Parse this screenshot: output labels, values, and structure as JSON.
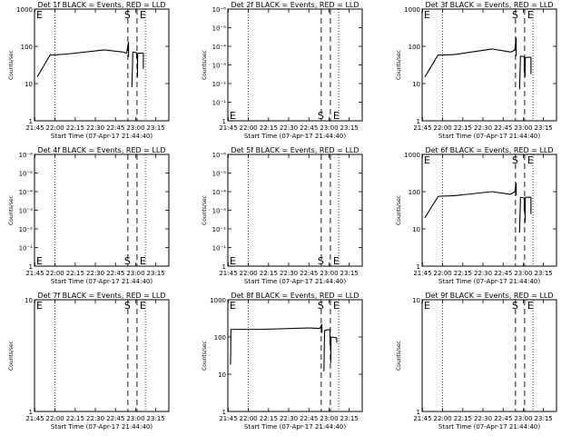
{
  "chart_data": [
    {
      "type": "line",
      "title": "Det 1f BLACK = Events, RED = LLD",
      "ylabel": "Counts/sec",
      "xlabel": "Start Time (07-Apr-17 21:44:40)",
      "y_scale": "log",
      "ylim": [
        1,
        1000
      ],
      "yticks": [
        "1",
        "10",
        "100",
        "1000"
      ],
      "xticks": [
        "21:45",
        "22:00",
        "22:15",
        "22:30",
        "22:45",
        "23:00",
        "23:15"
      ],
      "markers": [
        {
          "label": "E",
          "position": "top"
        },
        {
          "label": "S",
          "position": "top"
        },
        {
          "label": "E",
          "position": "top"
        }
      ],
      "series": [
        {
          "points": [
            [
              22.0,
              58
            ],
            [
              23.0,
              60
            ],
            [
              24.0,
              62
            ],
            [
              25.0,
              64
            ],
            [
              26.0,
              66
            ],
            [
              27.0,
              69
            ],
            [
              28.0,
              72
            ],
            [
              28.5,
              75
            ],
            [
              29.0,
              78
            ],
            [
              29.5,
              80
            ],
            [
              30.0,
              80
            ],
            [
              30.5,
              79
            ],
            [
              31.0,
              76
            ],
            [
              31.5,
              72
            ],
            [
              32.0,
              68
            ],
            [
              32.5,
              67
            ]
          ],
          "segments": [
            {
              "x": [
                2,
                12
              ],
              "y": [
                15,
                62
              ]
            },
            {
              "x": [
                12,
                24
              ],
              "y": [
                58,
                62
              ]
            },
            {
              "x": [
                24,
                52
              ],
              "y": [
                62,
                80
              ]
            },
            {
              "x": [
                52,
                66
              ],
              "y": [
                80,
                70
              ]
            },
            {
              "x": [
                66,
                68.6
              ],
              "y": [
                70,
                65
              ]
            },
            {
              "x": [
                68.6,
                70
              ],
              "y": [
                65,
                130
              ]
            },
            {
              "x": [
                70,
                70
              ],
              "y": [
                130,
                52
              ]
            },
            {
              "x": [
                72.5,
                73.2
              ],
              "y": [
                8,
                70
              ]
            },
            {
              "x": [
                73.2,
                76
              ],
              "y": [
                70,
                68
              ]
            },
            {
              "x": [
                76,
                76
              ],
              "y": [
                68,
                48
              ]
            },
            {
              "x": [
                76.6,
                76.8
              ],
              "y": [
                15,
                65
              ]
            },
            {
              "x": [
                76.8,
                81
              ],
              "y": [
                65,
                66
              ]
            },
            {
              "x": [
                81,
                81
              ],
              "y": [
                66,
                25
              ]
            }
          ]
        }
      ]
    },
    {
      "type": "line",
      "title": "Det 2f BLACK = Events, RED = LLD",
      "ylabel": "Counts/sec",
      "xlabel": "Start Time (07-Apr-17 21:44:40)",
      "y_scale": "log",
      "ylim": [
        1,
        1e-06
      ],
      "yticks": [
        "1",
        "10⁻¹",
        "10⁻²",
        "10⁻³",
        "10⁻⁴",
        "10⁻⁵",
        "10⁻⁶"
      ],
      "xticks": [
        "21:45",
        "22:00",
        "22:15",
        "22:30",
        "22:45",
        "23:00",
        "23:15"
      ],
      "markers": [
        {
          "label": "E",
          "position": "bottom"
        },
        {
          "label": "S",
          "position": "bottom"
        },
        {
          "label": "E",
          "position": "bottom"
        }
      ],
      "series": []
    },
    {
      "type": "line",
      "title": "Det 3f BLACK = Events, RED = LLD",
      "ylabel": "Counts/sec",
      "xlabel": "Start Time (07-Apr-17 21:44:40)",
      "y_scale": "log",
      "ylim": [
        1,
        1000
      ],
      "yticks": [
        "1",
        "10",
        "100",
        "1000"
      ],
      "xticks": [
        "21:45",
        "22:00",
        "22:15",
        "22:30",
        "22:45",
        "23:00",
        "23:15"
      ],
      "markers": [
        {
          "label": "E",
          "position": "top"
        },
        {
          "label": "S",
          "position": "top"
        },
        {
          "label": "E",
          "position": "top"
        }
      ],
      "series": [
        {
          "segments": [
            {
              "x": [
                2,
                12
              ],
              "y": [
                15,
                60
              ]
            },
            {
              "x": [
                12,
                24
              ],
              "y": [
                58,
                60
              ]
            },
            {
              "x": [
                24,
                52
              ],
              "y": [
                60,
                85
              ]
            },
            {
              "x": [
                52,
                66
              ],
              "y": [
                85,
                70
              ]
            },
            {
              "x": [
                66,
                69
              ],
              "y": [
                70,
                80
              ]
            },
            {
              "x": [
                69,
                70
              ],
              "y": [
                80,
                170
              ]
            },
            {
              "x": [
                70,
                70
              ],
              "y": [
                170,
                55
              ]
            },
            {
              "x": [
                72.5,
                73.2
              ],
              "y": [
                7,
                55
              ]
            },
            {
              "x": [
                73.2,
                76
              ],
              "y": [
                55,
                52
              ]
            },
            {
              "x": [
                76,
                76
              ],
              "y": [
                52,
                20
              ]
            },
            {
              "x": [
                76.6,
                76.8
              ],
              "y": [
                15,
                50
              ]
            },
            {
              "x": [
                76.8,
                81
              ],
              "y": [
                50,
                51
              ]
            },
            {
              "x": [
                81,
                81
              ],
              "y": [
                51,
                18
              ]
            }
          ]
        }
      ]
    },
    {
      "type": "line",
      "title": "Det 4f BLACK = Events, RED = LLD",
      "ylabel": "Counts/sec",
      "xlabel": "Start Time (07-Apr-17 21:44:40)",
      "y_scale": "log",
      "ylim": [
        1,
        1e-06
      ],
      "yticks": [
        "1",
        "10⁻¹",
        "10⁻²",
        "10⁻³",
        "10⁻⁴",
        "10⁻⁵",
        "10⁻⁶"
      ],
      "xticks": [
        "21:45",
        "22:00",
        "22:15",
        "22:30",
        "22:45",
        "23:00",
        "23:15"
      ],
      "markers": [
        {
          "label": "E",
          "position": "bottom"
        },
        {
          "label": "S",
          "position": "bottom"
        },
        {
          "label": "E",
          "position": "bottom"
        }
      ],
      "series": []
    },
    {
      "type": "line",
      "title": "Det 5f BLACK = Events, RED = LLD",
      "ylabel": "Counts/sec",
      "xlabel": "Start Time (07-Apr-17 21:44:40)",
      "y_scale": "log",
      "ylim": [
        1,
        1e-06
      ],
      "yticks": [
        "1",
        "10⁻¹",
        "10⁻²",
        "10⁻³",
        "10⁻⁴",
        "10⁻⁵",
        "10⁻⁶"
      ],
      "xticks": [
        "21:45",
        "22:00",
        "22:15",
        "22:30",
        "22:45",
        "23:00",
        "23:15"
      ],
      "markers": [
        {
          "label": "E",
          "position": "bottom"
        },
        {
          "label": "S",
          "position": "bottom"
        },
        {
          "label": "E",
          "position": "bottom"
        }
      ],
      "series": []
    },
    {
      "type": "line",
      "title": "Det 6f BLACK = Events, RED = LLD",
      "ylabel": "Counts/sec",
      "xlabel": "Start Time (07-Apr-17 21:44:40)",
      "y_scale": "log",
      "ylim": [
        1,
        1000
      ],
      "yticks": [
        "1",
        "10",
        "100",
        "1000"
      ],
      "xticks": [
        "21:45",
        "22:00",
        "22:15",
        "22:30",
        "22:45",
        "23:00",
        "23:15"
      ],
      "markers": [
        {
          "label": "E",
          "position": "top"
        },
        {
          "label": "S",
          "position": "top"
        },
        {
          "label": "E",
          "position": "top"
        }
      ],
      "series": [
        {
          "segments": [
            {
              "x": [
                2,
                12
              ],
              "y": [
                20,
                75
              ]
            },
            {
              "x": [
                12,
                24
              ],
              "y": [
                75,
                78
              ]
            },
            {
              "x": [
                24,
                52
              ],
              "y": [
                78,
                100
              ]
            },
            {
              "x": [
                52,
                66
              ],
              "y": [
                100,
                85
              ]
            },
            {
              "x": [
                66,
                69
              ],
              "y": [
                85,
                100
              ]
            },
            {
              "x": [
                69,
                70
              ],
              "y": [
                100,
                170
              ]
            },
            {
              "x": [
                70,
                70
              ],
              "y": [
                170,
                80
              ]
            },
            {
              "x": [
                72.5,
                73.2
              ],
              "y": [
                8,
                70
              ]
            },
            {
              "x": [
                73.2,
                76
              ],
              "y": [
                70,
                68
              ]
            },
            {
              "x": [
                76,
                76
              ],
              "y": [
                68,
                30
              ]
            },
            {
              "x": [
                76.6,
                76.8
              ],
              "y": [
                15,
                70
              ]
            },
            {
              "x": [
                76.8,
                81
              ],
              "y": [
                70,
                71
              ]
            },
            {
              "x": [
                81,
                81
              ],
              "y": [
                71,
                25
              ]
            }
          ]
        }
      ]
    },
    {
      "type": "line",
      "title": "Det 7f BLACK = Events, RED = LLD",
      "ylabel": "Counts/sec",
      "xlabel": "Start Time (07-Apr-17 21:44:40)",
      "y_scale": "log",
      "ylim": [
        1,
        10
      ],
      "yticks": [
        "1",
        "10"
      ],
      "xticks": [
        "21:45",
        "22:00",
        "22:15",
        "22:30",
        "22:45",
        "23:00",
        "23:15"
      ],
      "markers": [
        {
          "label": "E",
          "position": "top"
        },
        {
          "label": "S",
          "position": "top"
        },
        {
          "label": "E",
          "position": "top"
        }
      ],
      "series": []
    },
    {
      "type": "line",
      "title": "Det 8f BLACK = Events, RED = LLD",
      "ylabel": "Counts/sec",
      "xlabel": "Start Time (07-Apr-17 21:44:40)",
      "y_scale": "log",
      "ylim": [
        1,
        1000
      ],
      "yticks": [
        "1",
        "10",
        "100",
        "1000"
      ],
      "xticks": [
        "21:45",
        "22:00",
        "22:15",
        "22:30",
        "22:45",
        "23:00",
        "23:15"
      ],
      "markers": [
        {
          "label": "E",
          "position": "top"
        },
        {
          "label": "S",
          "position": "top"
        },
        {
          "label": "E",
          "position": "top"
        }
      ],
      "series": [
        {
          "segments": [
            {
              "x": [
                2,
                2.3
              ],
              "y": [
                18,
                160
              ]
            },
            {
              "x": [
                2.3,
                24
              ],
              "y": [
                160,
                160
              ]
            },
            {
              "x": [
                24,
                60
              ],
              "y": [
                160,
                175
              ]
            },
            {
              "x": [
                60,
                68.5
              ],
              "y": [
                175,
                170
              ]
            },
            {
              "x": [
                68.5,
                70
              ],
              "y": [
                170,
                220
              ]
            },
            {
              "x": [
                70,
                70
              ],
              "y": [
                220,
                130
              ]
            },
            {
              "x": [
                71.5,
                72
              ],
              "y": [
                12,
                150
              ]
            },
            {
              "x": [
                72,
                76
              ],
              "y": [
                150,
                160
              ]
            },
            {
              "x": [
                76,
                76
              ],
              "y": [
                160,
                60
              ]
            },
            {
              "x": [
                76.6,
                76.8
              ],
              "y": [
                20,
                100
              ]
            },
            {
              "x": [
                76.8,
                81
              ],
              "y": [
                100,
                95
              ]
            },
            {
              "x": [
                81,
                81
              ],
              "y": [
                95,
                70
              ]
            }
          ]
        }
      ]
    },
    {
      "type": "line",
      "title": "Det 9f BLACK = Events, RED = LLD",
      "ylabel": "Counts/sec",
      "xlabel": "Start Time (07-Apr-17 21:44:40)",
      "y_scale": "log",
      "ylim": [
        1,
        10
      ],
      "yticks": [
        "1",
        "10"
      ],
      "xticks": [
        "21:45",
        "22:00",
        "22:15",
        "22:30",
        "22:45",
        "23:00",
        "23:15"
      ],
      "markers": [
        {
          "label": "E",
          "position": "top"
        },
        {
          "label": "S",
          "position": "top"
        },
        {
          "label": "E",
          "position": "top"
        }
      ],
      "series": []
    }
  ]
}
